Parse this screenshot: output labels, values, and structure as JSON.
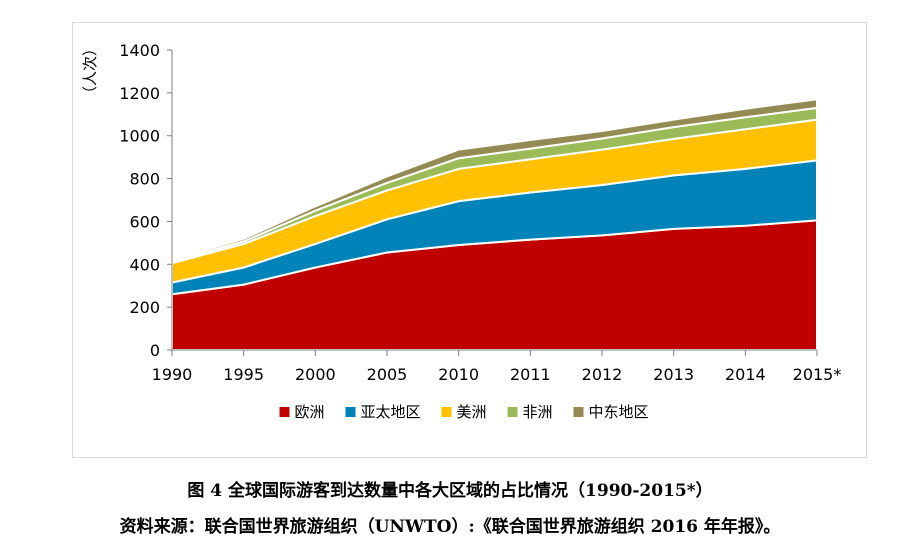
{
  "chart_data": {
    "type": "area",
    "stacked": true,
    "categories": [
      "1990",
      "1995",
      "2000",
      "2005",
      "2010",
      "2011",
      "2012",
      "2013",
      "2014",
      "2015*"
    ],
    "ylabel": "（人次）",
    "ylim": [
      0,
      1400
    ],
    "yticks": [
      0,
      200,
      400,
      600,
      800,
      1000,
      1200,
      1400
    ],
    "grid": false,
    "legend_position": "bottom",
    "series": [
      {
        "name": "欧洲",
        "color": "#C00000",
        "values": [
          260,
          305,
          385,
          455,
          490,
          515,
          535,
          565,
          580,
          605
        ]
      },
      {
        "name": "亚太地区",
        "color": "#0083B8",
        "values": [
          55,
          80,
          110,
          155,
          205,
          220,
          235,
          250,
          265,
          280
        ]
      },
      {
        "name": "美洲",
        "color": "#FFC000",
        "values": [
          90,
          110,
          130,
          135,
          150,
          155,
          165,
          170,
          185,
          190
        ]
      },
      {
        "name": "非洲",
        "color": "#9BBB59",
        "values": [
          8,
          12,
          25,
          35,
          50,
          50,
          52,
          55,
          56,
          55
        ]
      },
      {
        "name": "中东地区",
        "color": "#948A54",
        "values": [
          8,
          12,
          20,
          30,
          40,
          40,
          35,
          35,
          40,
          40
        ]
      }
    ]
  },
  "caption": "图 4  全球国际游客到达数量中各大区域的占比情况（1990-2015*）",
  "source": "资料来源：联合国世界旅游组织（UNWTO）:《联合国世界旅游组织 2016 年年报》。"
}
